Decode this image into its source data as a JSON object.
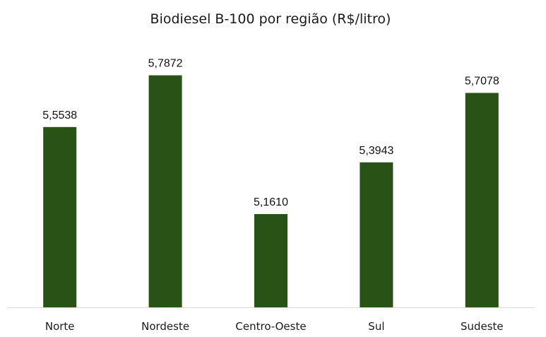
{
  "chart_data": {
    "type": "bar",
    "title": "Biodiesel B-100 por região (R$/litro)",
    "xlabel": "",
    "ylabel": "",
    "categories": [
      "Norte",
      "Nordeste",
      "Centro-Oeste",
      "Sul",
      "Sudeste"
    ],
    "values": [
      5.5538,
      5.7872,
      5.161,
      5.3943,
      5.7078
    ],
    "data_labels": [
      "5,5538",
      "5,7872",
      "5,1610",
      "5,3943",
      "5,7078"
    ],
    "ylim": [
      4.74,
      5.84
    ],
    "grid": false,
    "legend": "none",
    "colors": {
      "bar": "#285216",
      "axis": "#d9d9d9"
    }
  }
}
